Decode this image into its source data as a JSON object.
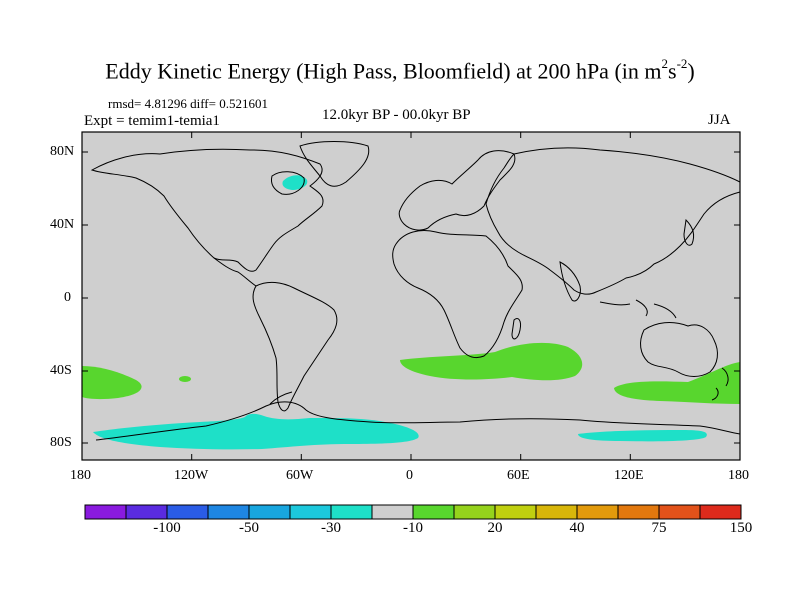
{
  "title": {
    "main": "Eddy Kinetic Energy (High Pass, Bloomfield) at 200 hPa (in m",
    "sup1": "2",
    "mid": "s",
    "sup2": "-2",
    "end": ")"
  },
  "stats": "rmsd= 4.81296 diff= 0.521601",
  "expt": "Expt = temim1-temia1",
  "period": "12.0kyr BP - 00.0kyr BP",
  "season": "JJA",
  "lat_ticks": [
    "80N",
    "40N",
    "0",
    "40S",
    "80S"
  ],
  "lon_ticks": [
    "180",
    "120W",
    "60W",
    "0",
    "60E",
    "120E",
    "180"
  ],
  "colorbar": {
    "colors": [
      "#8a1adf",
      "#5a2be0",
      "#2a5ce6",
      "#1e86e2",
      "#18a6df",
      "#1cc8dc",
      "#1ee0c8",
      "#cfcfcf",
      "#58d62e",
      "#95d21c",
      "#c0d010",
      "#d8b60a",
      "#e29a0c",
      "#e2780e",
      "#e2521a",
      "#dd2a1c"
    ],
    "labels": [
      "-100",
      "-50",
      "-30",
      "-10",
      "20",
      "40",
      "75",
      "150"
    ]
  },
  "colors": {
    "background_field": "#cfcfcf",
    "positive_light": "#58d62e",
    "negative_light": "#1ee0c8",
    "negative_mid": "#1cc8dc"
  }
}
